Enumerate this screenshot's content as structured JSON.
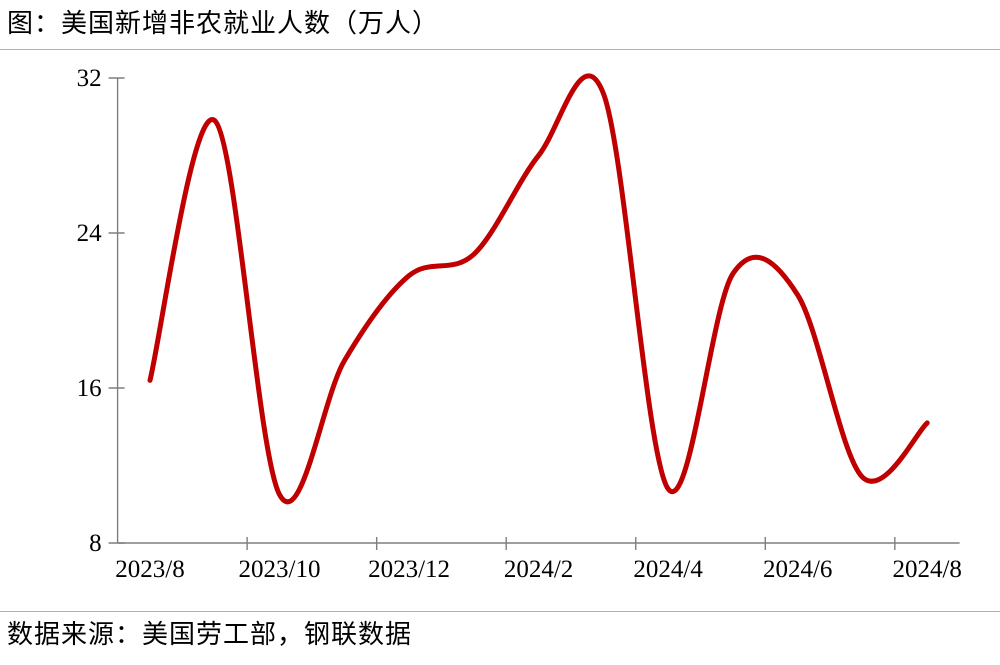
{
  "header": {
    "title": "图：美国新增非农就业人数（万人）"
  },
  "footer": {
    "source_note": "数据来源：美国劳工部，钢联数据"
  },
  "colors": {
    "line": "#c00000",
    "axis": "#7f7f7f",
    "divider": "#a2b5cf",
    "text": "#000000"
  },
  "chart_data": {
    "type": "line",
    "title": "美国新增非农就业人数（万人）",
    "x": [
      "2023/8",
      "2023/9",
      "2023/10",
      "2023/11",
      "2023/12",
      "2024/1",
      "2024/2",
      "2024/3",
      "2024/4",
      "2024/5",
      "2024/6",
      "2024/7",
      "2024/8"
    ],
    "series": [
      {
        "name": "美国新增非农就业人数（万人）",
        "values": [
          16.4,
          29.8,
          10.5,
          17.4,
          21.8,
          22.9,
          28.0,
          31.2,
          10.8,
          21.9,
          20.8,
          11.4,
          14.2
        ],
        "color": "#c00000"
      }
    ],
    "x_tick_labels": [
      "2023/8",
      "2023/10",
      "2023/12",
      "2024/2",
      "2024/4",
      "2024/6",
      "2024/8"
    ],
    "x_tick_every": 2,
    "y_ticks": [
      8,
      16,
      24,
      32
    ],
    "ylim": [
      8,
      32
    ],
    "grid": false,
    "legend_position": "none",
    "smooth": true
  }
}
